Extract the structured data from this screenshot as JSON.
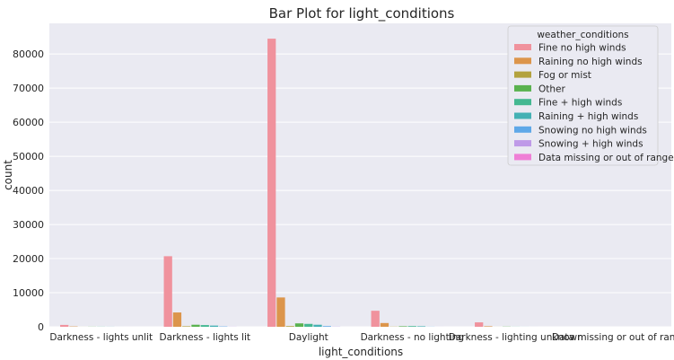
{
  "chart_data": {
    "type": "bar",
    "title": "Bar Plot for light_conditions",
    "xlabel": "light_conditions",
    "ylabel": "count",
    "ylim": [
      0,
      89000
    ],
    "yticks": [
      0,
      10000,
      20000,
      30000,
      40000,
      50000,
      60000,
      70000,
      80000
    ],
    "grid": true,
    "legend_position": "top-right",
    "legend_title": "weather_conditions",
    "categories": [
      "Darkness - lights unlit",
      "Darkness - lights lit",
      "Daylight",
      "Darkness - no lighting",
      "Darkness - lighting unknown",
      "Data missing or out of range"
    ],
    "series": [
      {
        "name": "Fine no high winds",
        "color": "#f0929d",
        "values": [
          550,
          20700,
          84500,
          4700,
          1300,
          0
        ]
      },
      {
        "name": "Raining no high winds",
        "color": "#dc954b",
        "values": [
          100,
          4200,
          8600,
          1100,
          150,
          0
        ]
      },
      {
        "name": "Fog or mist",
        "color": "#b3a23e",
        "values": [
          10,
          150,
          200,
          50,
          10,
          0
        ]
      },
      {
        "name": "Other",
        "color": "#5ab24f",
        "values": [
          30,
          600,
          1000,
          150,
          50,
          0
        ]
      },
      {
        "name": "Fine + high winds",
        "color": "#44b891",
        "values": [
          30,
          500,
          850,
          200,
          20,
          0
        ]
      },
      {
        "name": "Raining + high winds",
        "color": "#44b1b4",
        "values": [
          20,
          350,
          600,
          150,
          10,
          0
        ]
      },
      {
        "name": "Snowing no high winds",
        "color": "#5fa8e8",
        "values": [
          5,
          100,
          200,
          30,
          5,
          0
        ]
      },
      {
        "name": "Snowing + high winds",
        "color": "#bf9ae8",
        "values": [
          5,
          30,
          50,
          10,
          0,
          0
        ]
      },
      {
        "name": "Data missing or out of range",
        "color": "#ef7fd6",
        "values": [
          0,
          0,
          0,
          0,
          0,
          0
        ]
      }
    ]
  }
}
